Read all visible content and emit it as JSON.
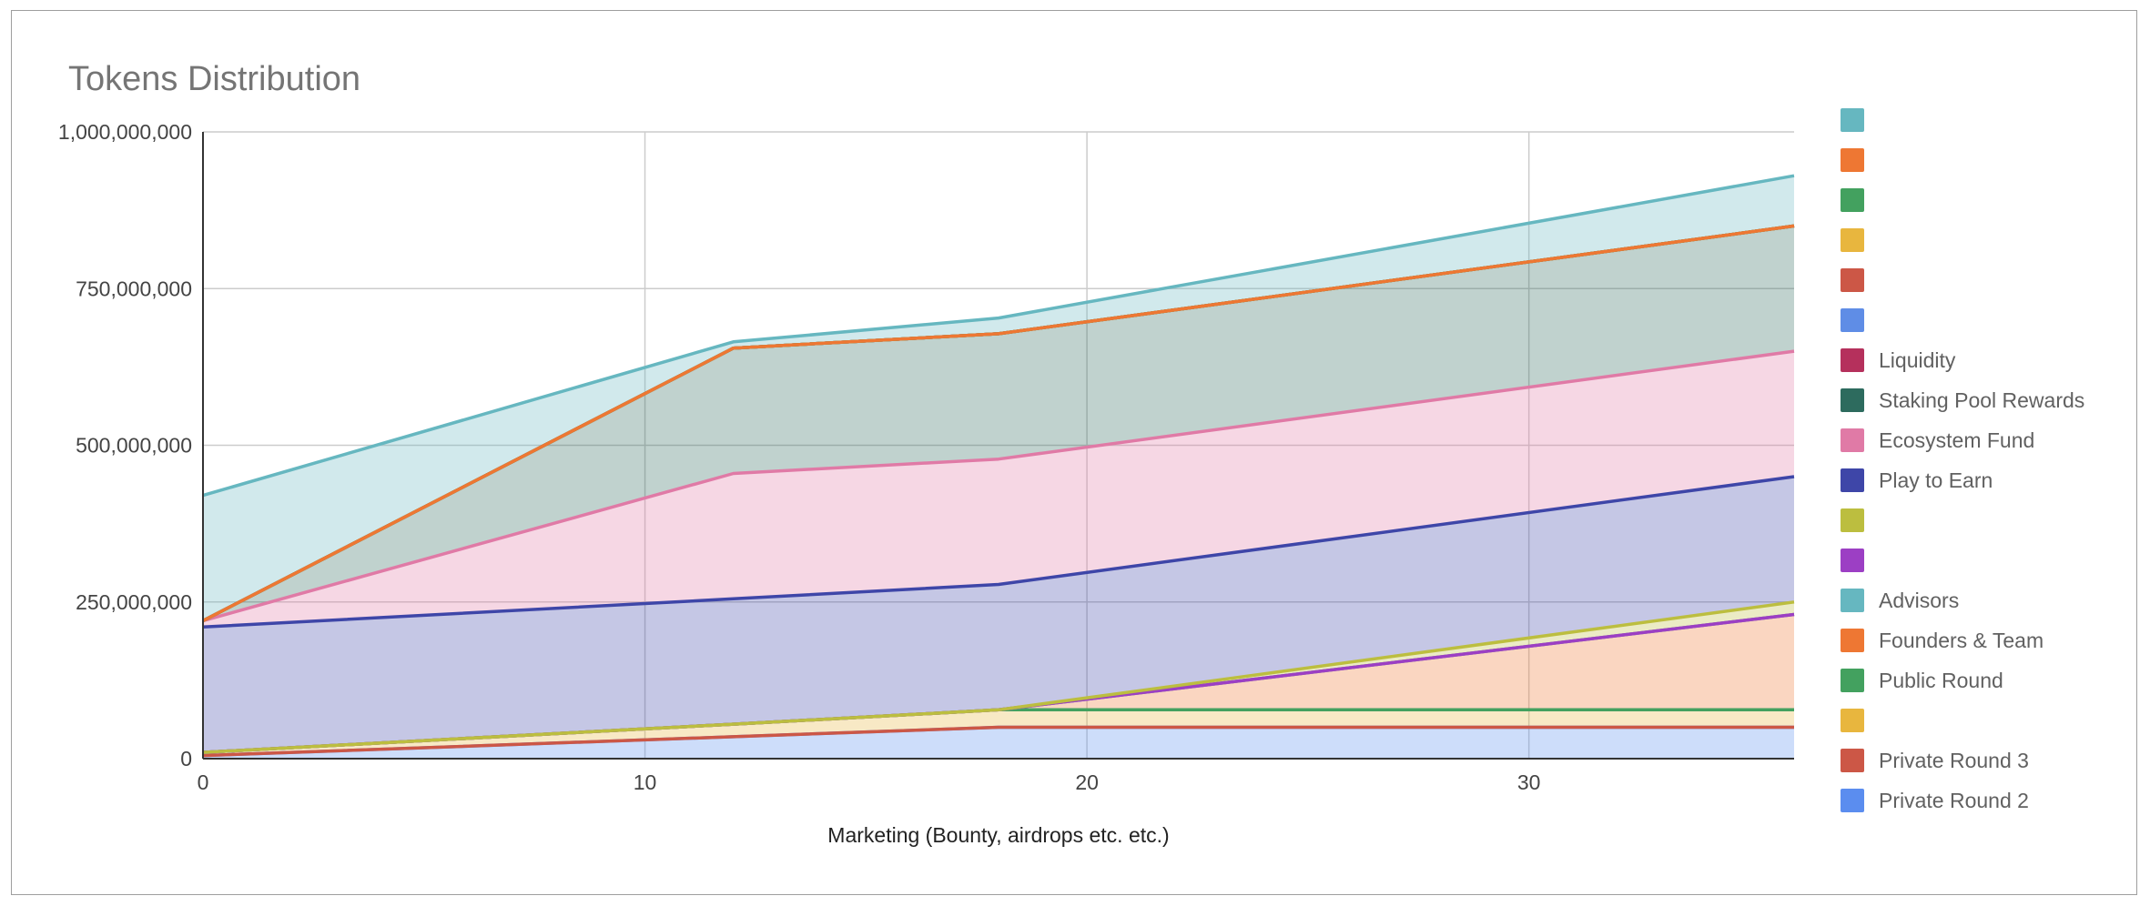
{
  "chart_data": {
    "type": "area",
    "stacked": true,
    "title": "Tokens Distribution",
    "xlabel": "Marketing (Bounty, airdrops etc. etc.)",
    "ylabel": "",
    "xlim": [
      0,
      36
    ],
    "ylim": [
      0,
      1000000000
    ],
    "x_ticks": [
      0,
      10,
      20,
      30
    ],
    "x_tick_labels": [
      "0",
      "10",
      "20",
      "30"
    ],
    "y_ticks": [
      0,
      250000000,
      500000000,
      750000000,
      1000000000
    ],
    "y_tick_labels": [
      "0",
      "250,000,000",
      "500,000,000",
      "750,000,000",
      "1,000,000,000"
    ],
    "grid": true,
    "legend_position": "right",
    "x": [
      0,
      12,
      18,
      36
    ],
    "series": [
      {
        "name": "Private Round 2",
        "color": "#5b8def",
        "values": [
          5000000,
          35000000,
          50000000,
          50000000
        ]
      },
      {
        "name": "Private Round 3",
        "color": "#cc5746",
        "values": [
          0,
          0,
          0,
          0
        ]
      },
      {
        "name": "",
        "color": "#e8b63e",
        "values": [
          5000000,
          20000000,
          28000000,
          28000000
        ]
      },
      {
        "name": "Public Round",
        "color": "#43a15f",
        "values": [
          0,
          0,
          0,
          0
        ]
      },
      {
        "name": "Founders & Team",
        "color": "#ee7733",
        "values": [
          0,
          0,
          0,
          152000000
        ]
      },
      {
        "name": "Advisors",
        "color": "#66b7c0",
        "values": [
          0,
          0,
          0,
          0
        ]
      },
      {
        "name": "",
        "color": "#9c3fc4",
        "values": [
          0,
          0,
          0,
          0
        ]
      },
      {
        "name": "",
        "color": "#bcbe3f",
        "values": [
          0,
          0,
          0,
          20000000
        ]
      },
      {
        "name": "Play to Earn",
        "color": "#3e46a8",
        "values": [
          200000000,
          200000000,
          200000000,
          200000000
        ]
      },
      {
        "name": "Ecosystem Fund",
        "color": "#e07aa6",
        "values": [
          10000000,
          200000000,
          200000000,
          200000000
        ]
      },
      {
        "name": "Staking Pool Rewards",
        "color": "#2d6b5e",
        "values": [
          0,
          200000000,
          200000000,
          200000000
        ]
      },
      {
        "name": "Liquidity",
        "color": "#b5305c",
        "values": [
          0,
          0,
          0,
          0
        ]
      },
      {
        "name": "",
        "color": "#5f8de6",
        "values": [
          0,
          0,
          0,
          0
        ]
      },
      {
        "name": "",
        "color": "#cc5746",
        "values": [
          0,
          0,
          0,
          0
        ]
      },
      {
        "name": "",
        "color": "#e8b63e",
        "values": [
          0,
          0,
          0,
          0
        ]
      },
      {
        "name": "",
        "color": "#43a15f",
        "values": [
          0,
          0,
          0,
          0
        ]
      },
      {
        "name": "",
        "color": "#ee7733",
        "values": [
          0,
          0,
          0,
          0
        ]
      },
      {
        "name": "",
        "color": "#66b7c0",
        "values": [
          200000000,
          10000000,
          25000000,
          80000000
        ]
      }
    ]
  }
}
